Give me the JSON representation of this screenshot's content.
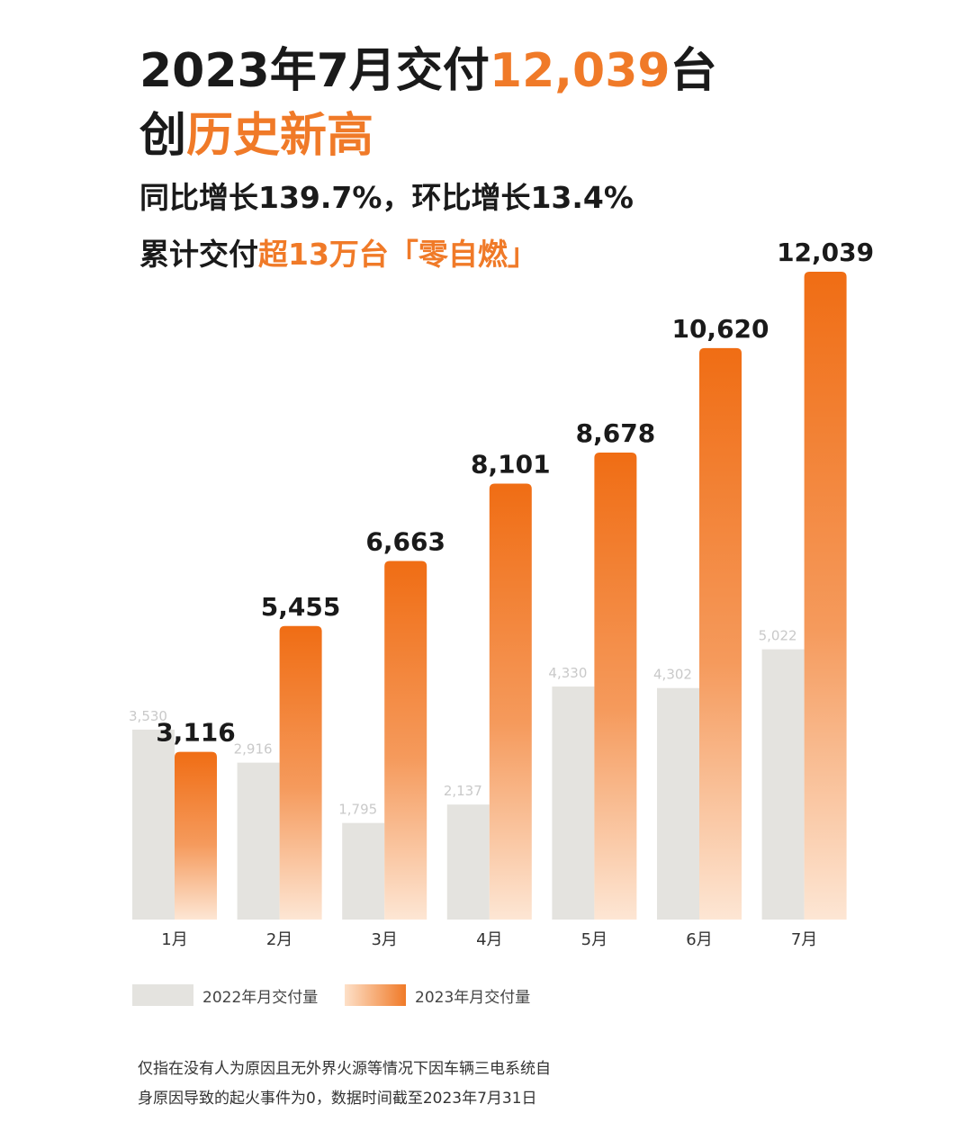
{
  "header": {
    "line1_pre": "2023年7月交付",
    "line1_highlight": "12,039",
    "line1_post": "台",
    "line2_pre": "创",
    "line2_highlight": "历史新高",
    "line3": "同比增长139.7%，环比增长13.4%",
    "line4_pre": "累计交付",
    "line4_highlight": "超13万台「零自燃」"
  },
  "colors": {
    "accent": "#f07a28",
    "accent_light": "#fde0c8",
    "bar_2022": "#e4e3df",
    "text": "#1a1a1a",
    "label_2022": "#c9c9c9"
  },
  "chart_data": {
    "type": "bar",
    "categories": [
      "1月",
      "2月",
      "3月",
      "4月",
      "5月",
      "6月",
      "7月"
    ],
    "series": [
      {
        "name": "2022年月交付量",
        "values": [
          3530,
          2916,
          1795,
          2137,
          4330,
          4302,
          5022
        ],
        "labels": [
          "3,530",
          "2,916",
          "1,795",
          "2,137",
          "4,330",
          "4,302",
          "5,022"
        ]
      },
      {
        "name": "2023年月交付量",
        "values": [
          3116,
          5455,
          6663,
          8101,
          8678,
          10620,
          12039
        ],
        "labels": [
          "3,116",
          "5,455",
          "6,663",
          "8,101",
          "8,678",
          "10,620",
          "12,039"
        ]
      }
    ],
    "ylim": [
      0,
      12039
    ],
    "grid": false,
    "legend_position": "bottom-left"
  },
  "legend": {
    "item_2022": "2022年月交付量",
    "item_2023": "2023年月交付量"
  },
  "footnote": {
    "line1": "仅指在没有人为原因且无外界火源等情况下因车辆三电系统自",
    "line2": "身原因导致的起火事件为0，数据时间截至2023年7月31日"
  }
}
